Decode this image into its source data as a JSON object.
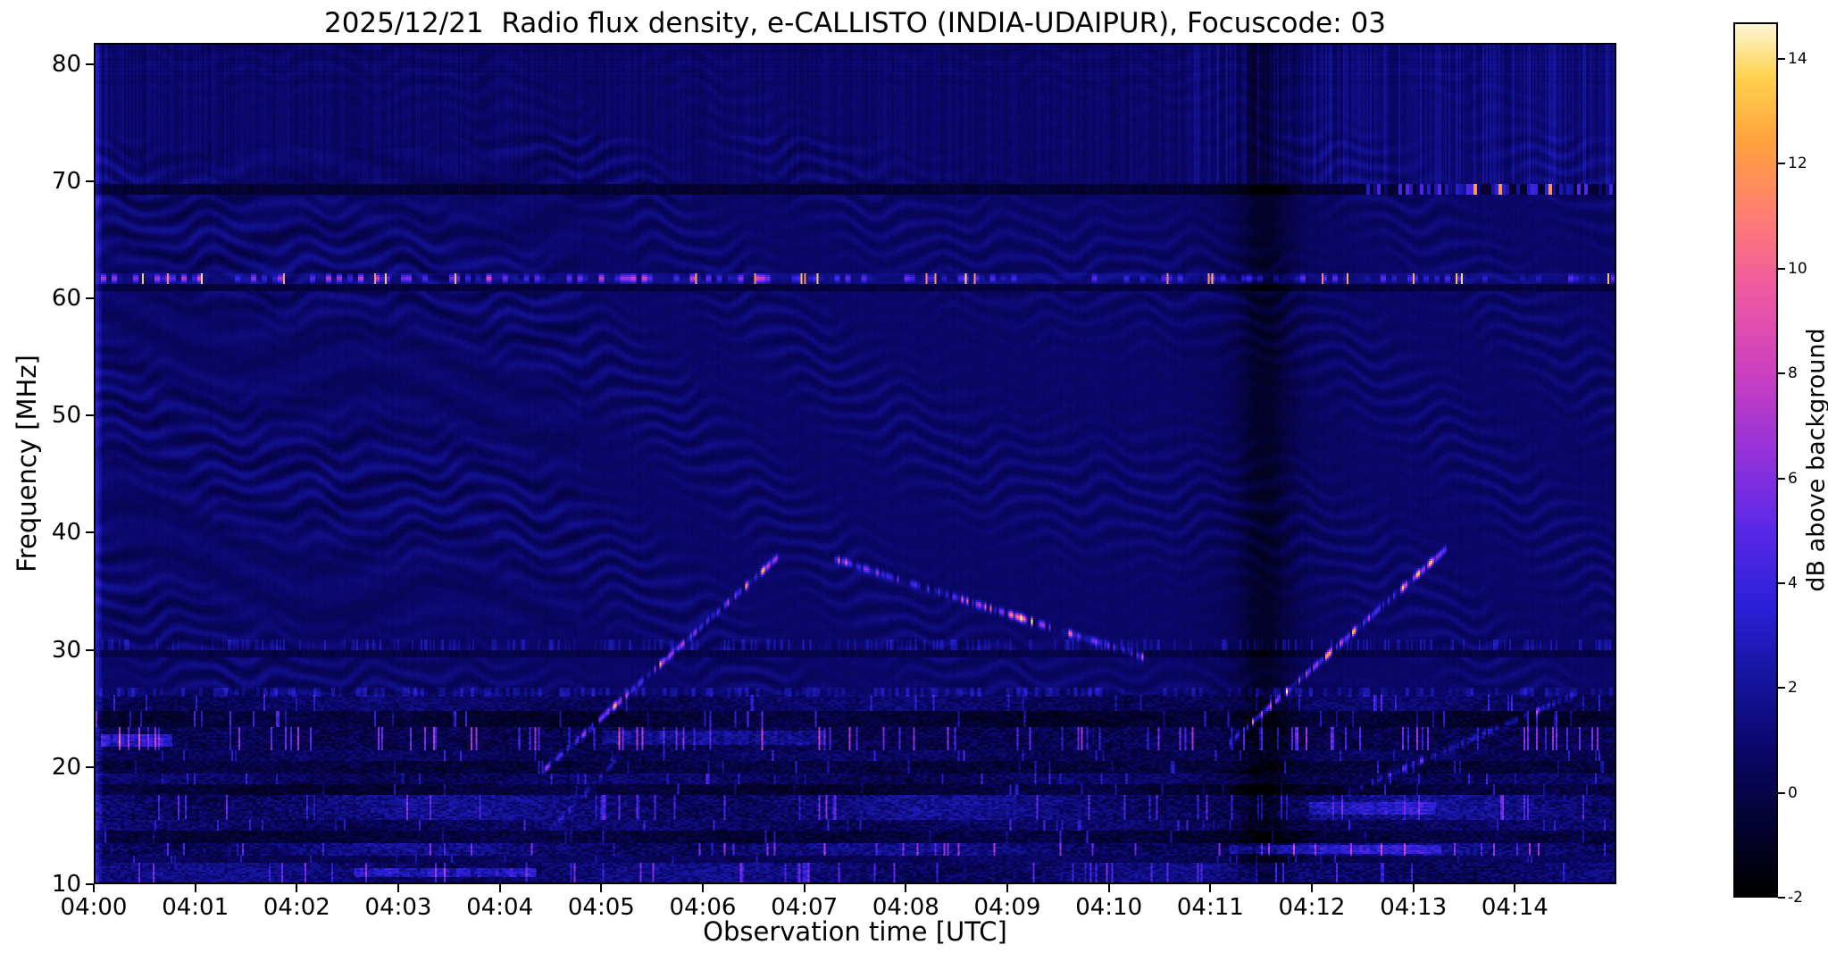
{
  "figure": {
    "background": "#ffffff"
  },
  "chart_data": {
    "type": "heatmap",
    "title": "2025/12/21  Radio flux density, e-CALLISTO (INDIA-UDAIPUR), Focuscode: 03",
    "xlabel": "Observation time [UTC]",
    "ylabel": "Frequency [MHz]",
    "x_ticks": [
      "04:00",
      "04:01",
      "04:02",
      "04:03",
      "04:04",
      "04:05",
      "04:06",
      "04:07",
      "04:08",
      "04:09",
      "04:10",
      "04:11",
      "04:12",
      "04:13",
      "04:14"
    ],
    "xlim_minutes": [
      0,
      15
    ],
    "y_ticks": [
      10,
      20,
      30,
      40,
      50,
      60,
      70,
      80
    ],
    "ylim": [
      10,
      81.8
    ],
    "grid": false,
    "colorbar": {
      "label": "dB above background",
      "ticks": [
        -2,
        0,
        2,
        4,
        6,
        8,
        10,
        12,
        14
      ],
      "vmin": -2,
      "vmax": 14.7,
      "position": "right",
      "colormap_stops": [
        [
          0.0,
          "#000000"
        ],
        [
          0.1,
          "#05033c"
        ],
        [
          0.16,
          "#0a0666"
        ],
        [
          0.25,
          "#15159e"
        ],
        [
          0.33,
          "#2b1fd8"
        ],
        [
          0.42,
          "#5a28e8"
        ],
        [
          0.5,
          "#8f31dc"
        ],
        [
          0.6,
          "#cc3fc0"
        ],
        [
          0.7,
          "#f05ba0"
        ],
        [
          0.78,
          "#ff7d72"
        ],
        [
          0.87,
          "#ffa43c"
        ],
        [
          0.94,
          "#ffd24f"
        ],
        [
          1.0,
          "#fdf5d4"
        ]
      ]
    },
    "content": {
      "background_db": 0.7,
      "ripple": {
        "amplitude_db": 0.55,
        "freq_period_mhz": 1.6,
        "time_period_min": 0.88,
        "f_range": [
          23,
          74
        ],
        "stronger_left_of_min": 4.3
      },
      "rfi_bands": [
        {
          "f": [
            10.0,
            11.6
          ],
          "base": 1.6,
          "noise": 0.9,
          "spark": 0.06,
          "gain": 5
        },
        {
          "f": [
            11.6,
            12.3
          ],
          "base": 0.6,
          "noise": 0.5,
          "spark": 0.02,
          "gain": 3
        },
        {
          "f": [
            12.3,
            13.3
          ],
          "base": 1.7,
          "noise": 1.0,
          "spark": 0.05,
          "gain": 6
        },
        {
          "f": [
            13.3,
            14.3
          ],
          "base": -0.6,
          "noise": 0.7,
          "spark": 0.02,
          "gain": 4
        },
        {
          "f": [
            14.3,
            15.3
          ],
          "base": 0.9,
          "noise": 0.8,
          "spark": 0.03,
          "gain": 4
        },
        {
          "f": [
            15.3,
            17.4
          ],
          "base": 1.8,
          "noise": 1.0,
          "spark": 0.05,
          "gain": 5
        },
        {
          "f": [
            17.4,
            18.3
          ],
          "base": -0.8,
          "noise": 0.6,
          "spark": 0.02,
          "gain": 4
        },
        {
          "f": [
            18.3,
            19.3
          ],
          "base": 0.7,
          "noise": 0.8,
          "spark": 0.03,
          "gain": 4
        },
        {
          "f": [
            19.3,
            20.3
          ],
          "base": -0.5,
          "noise": 0.7,
          "spark": 0.03,
          "gain": 4
        },
        {
          "f": [
            20.3,
            21.3
          ],
          "base": 0.6,
          "noise": 0.7,
          "spark": 0.04,
          "gain": 4
        },
        {
          "f": [
            21.3,
            23.3
          ],
          "base": 0.2,
          "noise": 0.9,
          "spark": 0.1,
          "gain": 7
        },
        {
          "f": [
            23.3,
            24.7
          ],
          "base": -0.9,
          "noise": 0.6,
          "spark": 0.05,
          "gain": 5
        },
        {
          "f": [
            24.7,
            26.0
          ],
          "base": 0.9,
          "noise": 0.7,
          "spark": 0.04,
          "gain": 4
        }
      ],
      "h_lines": {
        "bright_62": {
          "f": [
            61.35,
            62.25
          ],
          "left_boost_until_min": 6.8
        },
        "dark_61": {
          "f": [
            60.7,
            61.3
          ]
        },
        "dark_69": {
          "f": [
            69.05,
            69.95
          ],
          "bright_after_min": 12.55
        },
        "speckle_30": {
          "f": [
            29.85,
            30.75
          ]
        },
        "dark_295": {
          "f": [
            29.3,
            29.8
          ]
        },
        "speckle_26": {
          "f": [
            25.9,
            26.6
          ]
        }
      },
      "hot_segments": [
        {
          "t": [
            2.55,
            4.35
          ],
          "f": [
            10.4,
            11.2
          ],
          "add": 3.2
        },
        {
          "t": [
            0.05,
            0.75
          ],
          "f": [
            21.6,
            22.6
          ],
          "add": 4.0
        },
        {
          "t": [
            11.2,
            13.3
          ],
          "f": [
            12.4,
            13.2
          ],
          "add": 2.6
        },
        {
          "t": [
            12.0,
            13.25
          ],
          "f": [
            15.7,
            16.9
          ],
          "add": 2.2
        },
        {
          "t": [
            5.0,
            7.2
          ],
          "f": [
            21.8,
            23.0
          ],
          "add": 2.0
        }
      ],
      "drifting_bursts": [
        {
          "t": [
            4.42,
            6.78
          ],
          "f": [
            19.5,
            38.2
          ],
          "intensity": 1.0,
          "dots": 95
        },
        {
          "t": [
            7.3,
            10.35
          ],
          "f": [
            37.7,
            29.3
          ],
          "intensity": 0.75,
          "dots": 120,
          "cluster": [
            8.55,
            9.45,
            1.9
          ]
        },
        {
          "t": [
            11.15,
            13.35
          ],
          "f": [
            21.5,
            38.6
          ],
          "intensity": 1.0,
          "dots": 90
        },
        {
          "t": [
            12.35,
            14.65
          ],
          "f": [
            17.5,
            26.2
          ],
          "intensity": 0.45,
          "dots": 90
        },
        {
          "t": [
            4.5,
            5.15
          ],
          "f": [
            14.5,
            20.5
          ],
          "intensity": 0.4,
          "dots": 28
        }
      ],
      "dark_vertical_band": {
        "t_minutes": 11.55,
        "sigma_minutes": 0.17,
        "depth_db": 1.25,
        "wide_sigma_minutes": 0.45,
        "wide_depth_db": 0.35
      },
      "bright_left_edge": true,
      "top_right_stripes": {
        "t_start_minutes": 10.75,
        "f_min": 69.3
      }
    }
  }
}
